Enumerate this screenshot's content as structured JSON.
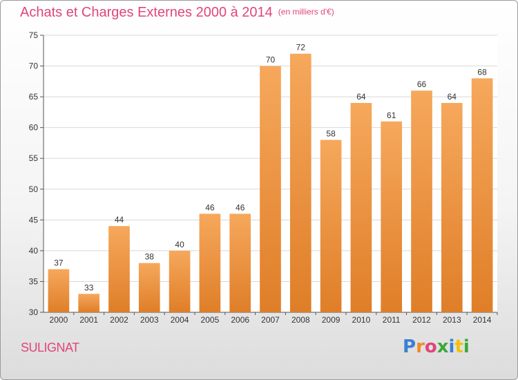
{
  "header": {
    "title": "Achats et Charges Externes 2000 à 2014",
    "subtitle": "(en milliers d'€)"
  },
  "footer": {
    "commune": "SULIGNAT",
    "logo_text": "Proxiti",
    "logo_letter_colors": [
      "#3a7fd5",
      "#f08a24",
      "#e0457b",
      "#3aa83a",
      "#3a7fd5",
      "#f2c200",
      "#3aa83a"
    ]
  },
  "colors": {
    "bar_light": "#f6a85c",
    "bar_dark": "#df7e28",
    "title": "#e0457b",
    "grid": "#d8d8d8",
    "axis": "#555555"
  },
  "chart_data": {
    "type": "bar",
    "title": "Achats et Charges Externes 2000 à 2014",
    "subtitle": "(en milliers d'€)",
    "categories": [
      "2000",
      "2001",
      "2002",
      "2003",
      "2004",
      "2005",
      "2006",
      "2007",
      "2008",
      "2009",
      "2010",
      "2011",
      "2012",
      "2013",
      "2014"
    ],
    "values": [
      37,
      33,
      44,
      38,
      40,
      46,
      46,
      70,
      72,
      58,
      64,
      61,
      66,
      64,
      68
    ],
    "ylim": [
      30,
      75
    ],
    "yticks": [
      30,
      35,
      40,
      45,
      50,
      55,
      60,
      65,
      70,
      75
    ],
    "grid": true,
    "data_labels": true,
    "xlabel": "",
    "ylabel": ""
  }
}
